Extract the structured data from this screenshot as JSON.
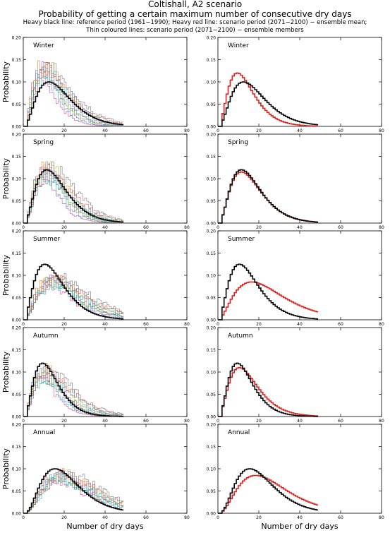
{
  "header": {
    "title": "Coltishall, A2 scenario",
    "subtitle": "Probability of getting a certain maximum number of consecutive dry days",
    "legend_line1": "Heavy black line: reference period (1961−1990); Heavy red line: scenario period (2071−2100) − ensemble mean;",
    "legend_line2": "Thin coloured lines: scenario period (2071−2100) − ensemble members"
  },
  "axes": {
    "ylabel": "Probability",
    "xlabel": "Number of dry days",
    "xticks": [
      "0",
      "20",
      "40",
      "60",
      "80"
    ],
    "yticks": [
      "0.00",
      "0.05",
      "0.10",
      "0.15",
      "0.20"
    ]
  },
  "colors": {
    "reference": "#000000",
    "ensemble_mean": "#e0201c",
    "members": [
      "#d94b9a",
      "#3aa0e0",
      "#ee7a2c",
      "#2db36a",
      "#8a6fd0",
      "#c9b230",
      "#20b8c0",
      "#e05050",
      "#7a7a7a"
    ]
  },
  "chart_data": [
    {
      "type": "line",
      "panel": "Winter",
      "column": "left",
      "xlim": [
        0,
        80
      ],
      "ylim": [
        0,
        0.2
      ],
      "series": [
        {
          "role": "reference",
          "peak_x": 12,
          "peak_y": 0.1,
          "shape": 0.27
        },
        {
          "role": "members",
          "peak_x": 10,
          "peak_y": 0.13,
          "shape": 0.3
        }
      ]
    },
    {
      "type": "line",
      "panel": "Winter",
      "column": "right",
      "xlim": [
        0,
        80
      ],
      "ylim": [
        0,
        0.2
      ],
      "series": [
        {
          "role": "reference",
          "peak_x": 12,
          "peak_y": 0.1,
          "shape": 0.27
        },
        {
          "role": "ensemble_mean",
          "peak_x": 9,
          "peak_y": 0.12,
          "shape": 0.28
        }
      ]
    },
    {
      "type": "line",
      "panel": "Spring",
      "column": "left",
      "xlim": [
        0,
        80
      ],
      "ylim": [
        0,
        0.2
      ],
      "series": [
        {
          "role": "reference",
          "peak_x": 11,
          "peak_y": 0.12,
          "shape": 0.26
        },
        {
          "role": "members",
          "peak_x": 11,
          "peak_y": 0.12,
          "shape": 0.26
        }
      ]
    },
    {
      "type": "line",
      "panel": "Spring",
      "column": "right",
      "xlim": [
        0,
        80
      ],
      "ylim": [
        0,
        0.2
      ],
      "series": [
        {
          "role": "reference",
          "peak_x": 11,
          "peak_y": 0.12,
          "shape": 0.26
        },
        {
          "role": "ensemble_mean",
          "peak_x": 11,
          "peak_y": 0.115,
          "shape": 0.27
        }
      ]
    },
    {
      "type": "line",
      "panel": "Summer",
      "column": "left",
      "xlim": [
        0,
        80
      ],
      "ylim": [
        0,
        0.2
      ],
      "series": [
        {
          "role": "reference",
          "peak_x": 10,
          "peak_y": 0.125,
          "shape": 0.3
        },
        {
          "role": "members",
          "peak_x": 14,
          "peak_y": 0.09,
          "shape": 0.3
        }
      ]
    },
    {
      "type": "line",
      "panel": "Summer",
      "column": "right",
      "xlim": [
        0,
        80
      ],
      "ylim": [
        0,
        0.2
      ],
      "series": [
        {
          "role": "reference",
          "peak_x": 10,
          "peak_y": 0.125,
          "shape": 0.3
        },
        {
          "role": "ensemble_mean",
          "peak_x": 16,
          "peak_y": 0.085,
          "shape": 0.32
        }
      ]
    },
    {
      "type": "line",
      "panel": "Autumn",
      "column": "left",
      "xlim": [
        0,
        80
      ],
      "ylim": [
        0,
        0.2
      ],
      "series": [
        {
          "role": "reference",
          "peak_x": 9,
          "peak_y": 0.12,
          "shape": 0.25
        },
        {
          "role": "members",
          "peak_x": 10,
          "peak_y": 0.1,
          "shape": 0.3
        }
      ]
    },
    {
      "type": "line",
      "panel": "Autumn",
      "column": "right",
      "xlim": [
        0,
        80
      ],
      "ylim": [
        0,
        0.2
      ],
      "series": [
        {
          "role": "reference",
          "peak_x": 9,
          "peak_y": 0.12,
          "shape": 0.25
        },
        {
          "role": "ensemble_mean",
          "peak_x": 10,
          "peak_y": 0.11,
          "shape": 0.28
        }
      ]
    },
    {
      "type": "line",
      "panel": "Annual",
      "column": "left",
      "xlim": [
        0,
        80
      ],
      "ylim": [
        0,
        0.2
      ],
      "series": [
        {
          "role": "reference",
          "peak_x": 15,
          "peak_y": 0.1,
          "shape": 0.22
        },
        {
          "role": "members",
          "peak_x": 18,
          "peak_y": 0.085,
          "shape": 0.25
        }
      ]
    },
    {
      "type": "line",
      "panel": "Annual",
      "column": "right",
      "xlim": [
        0,
        80
      ],
      "ylim": [
        0,
        0.2
      ],
      "series": [
        {
          "role": "reference",
          "peak_x": 15,
          "peak_y": 0.1,
          "shape": 0.22
        },
        {
          "role": "ensemble_mean",
          "peak_x": 18,
          "peak_y": 0.085,
          "shape": 0.25
        }
      ]
    }
  ]
}
